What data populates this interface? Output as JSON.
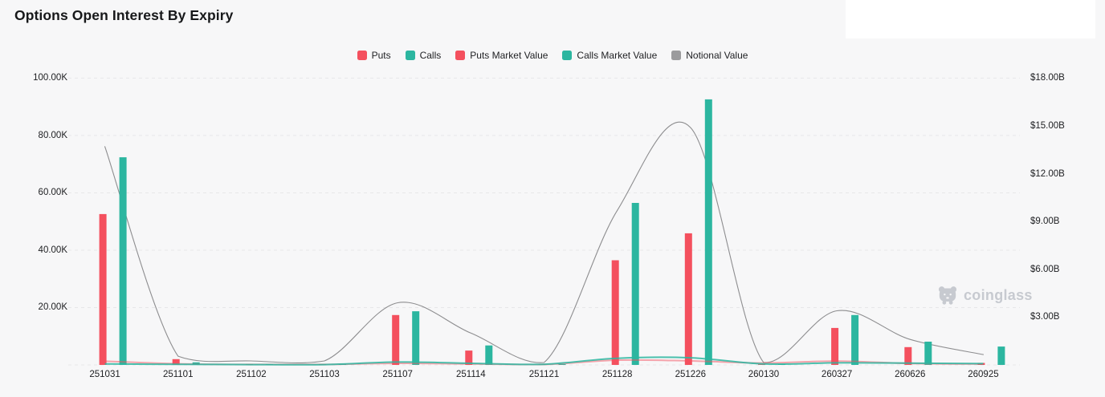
{
  "title": "Options Open Interest By Expiry",
  "watermark": {
    "text": "coinglass"
  },
  "colors": {
    "background": "#f7f7f8",
    "panel": "#ffffff",
    "puts": "#f4505e",
    "calls": "#2cb6a0",
    "notional": "#8d8d8f",
    "grid": "#e7e7e9",
    "axis_text": "#202124",
    "title_text": "#17181a",
    "watermark_gray": "#c7cad0"
  },
  "legend": {
    "items": [
      {
        "label": "Puts",
        "color": "#f4505e"
      },
      {
        "label": "Calls",
        "color": "#2cb6a0"
      },
      {
        "label": "Puts Market Value",
        "color": "#f4505e"
      },
      {
        "label": "Calls Market Value",
        "color": "#2cb6a0"
      },
      {
        "label": "Notional Value",
        "color": "#9b9b9d"
      }
    ]
  },
  "chart_data": {
    "type": "bar+line",
    "title": "Options Open Interest By Expiry",
    "categories": [
      "251031",
      "251101",
      "251102",
      "251103",
      "251107",
      "251114",
      "251121",
      "251128",
      "251226",
      "260130",
      "260327",
      "260626",
      "260925"
    ],
    "series": [
      {
        "name": "Puts",
        "type": "bar",
        "y_axis": "left",
        "unit": "K contracts",
        "color": "#f4505e",
        "values": [
          52.6,
          2.0,
          0.3,
          0.2,
          17.4,
          5.0,
          0.2,
          36.5,
          45.9,
          0.2,
          12.9,
          6.2,
          0.7
        ]
      },
      {
        "name": "Calls",
        "type": "bar",
        "y_axis": "left",
        "unit": "K contracts",
        "color": "#2cb6a0",
        "values": [
          72.4,
          0.9,
          0.2,
          0.1,
          18.7,
          6.8,
          0.2,
          56.5,
          92.6,
          0.2,
          17.4,
          8.1,
          6.4
        ]
      },
      {
        "name": "Puts Market Value",
        "type": "line",
        "y_axis": "right",
        "unit": "$B",
        "color": "#f4505e",
        "values": [
          0.23,
          0.07,
          0.03,
          0.03,
          0.1,
          0.06,
          0.03,
          0.3,
          0.25,
          0.12,
          0.24,
          0.09,
          0.05
        ]
      },
      {
        "name": "Calls Market Value",
        "type": "line",
        "y_axis": "right",
        "unit": "$B",
        "color": "#2cb6a0",
        "values": [
          0.06,
          0.04,
          0.02,
          0.02,
          0.18,
          0.1,
          0.04,
          0.42,
          0.45,
          0.06,
          0.13,
          0.11,
          0.08
        ]
      },
      {
        "name": "Notional Value",
        "type": "line",
        "y_axis": "right",
        "unit": "$B",
        "color": "#8d8d8f",
        "values": [
          13.7,
          0.55,
          0.25,
          0.25,
          3.9,
          2.0,
          0.15,
          9.7,
          14.9,
          0.15,
          3.4,
          1.6,
          0.65
        ]
      }
    ],
    "y_axis_left": {
      "tick_labels": [
        "100.00K",
        "80.00K",
        "60.00K",
        "40.00K",
        "20.00K"
      ],
      "tick_values": [
        100,
        80,
        60,
        40,
        20
      ],
      "range": [
        0,
        100
      ],
      "unit": "K"
    },
    "y_axis_right": {
      "tick_labels": [
        "$18.00B",
        "$15.00B",
        "$12.00B",
        "$9.00B",
        "$6.00B",
        "$3.00B"
      ],
      "tick_values": [
        18,
        15,
        12,
        9,
        6,
        3
      ],
      "range": [
        0,
        18
      ],
      "unit": "$B"
    },
    "grid": "horizontal-dashed",
    "legend_position": "top-center"
  }
}
